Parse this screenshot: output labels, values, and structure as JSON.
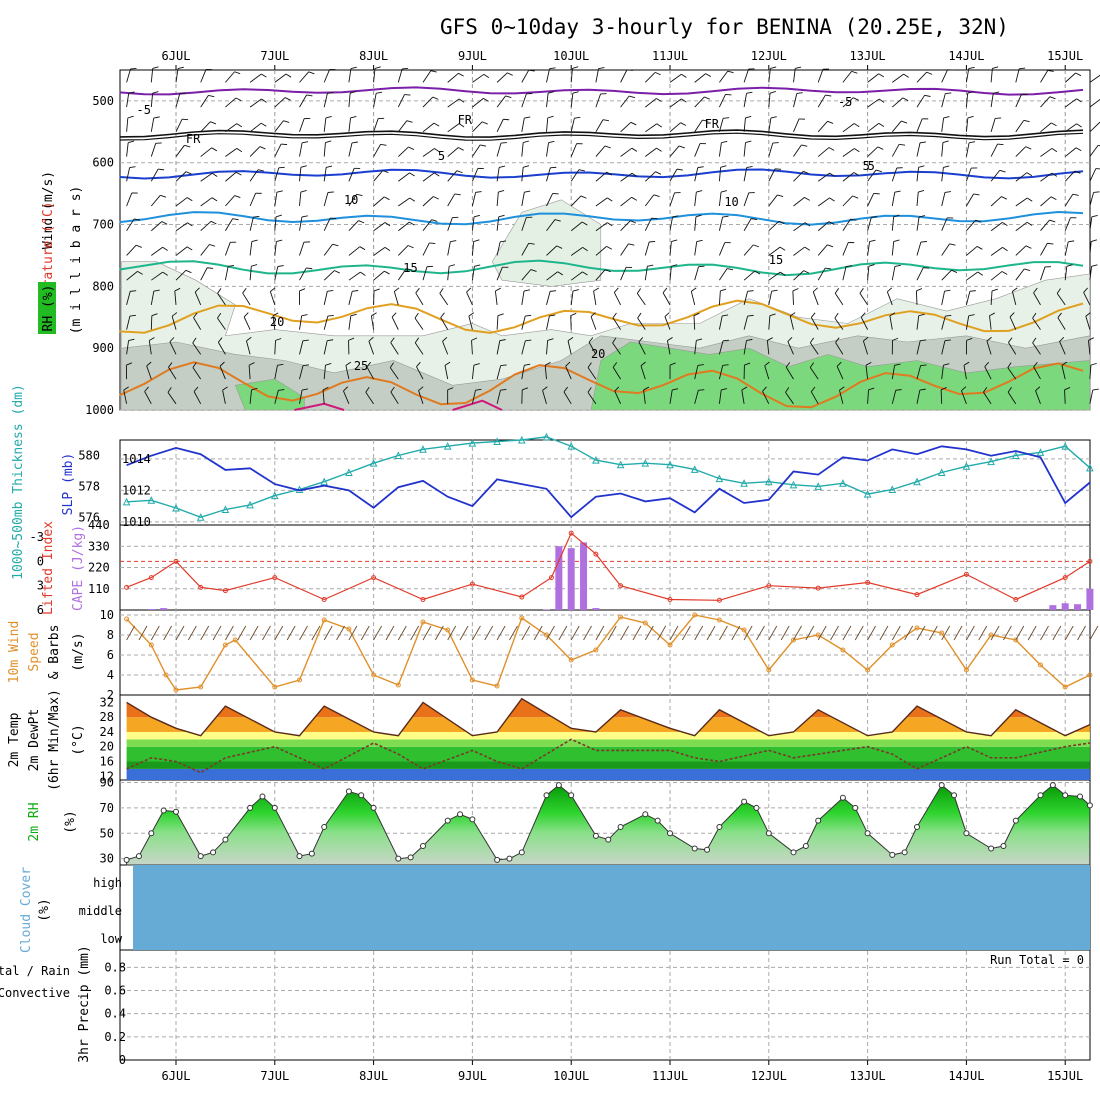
{
  "title": "GFS 0~10day 3-hourly for BENINA (20.25E, 32N)",
  "days": [
    "6JUL",
    "7JUL",
    "8JUL",
    "9JUL",
    "10JUL",
    "11JUL",
    "12JUL",
    "13JUL",
    "14JUL",
    "15JUL"
  ],
  "colors": {
    "rh": "#22bb22",
    "temp": "#e23a2a",
    "wind_label": "#000000",
    "thickness": "#22aaaa",
    "slp": "#2233cc",
    "lifted": "#e23a2a",
    "cape": "#b070e0",
    "wind10": "#e0902a",
    "rh2m": "#11aa11",
    "cloud": "#66aad6",
    "rain": "#22bb22",
    "convective": "#e23a2a"
  },
  "panels": {
    "upper": {
      "ylabel_wind": "Wind (m/s)",
      "ylabel_temp": "Temperature (°C)",
      "ylabel_rh": "RH (%)",
      "ylabel_mb": "(m i l l i b a r s)",
      "yticks": [
        "500",
        "600",
        "700",
        "800",
        "900",
        "1000"
      ],
      "contour_labels": [
        "5",
        "FR",
        "FR",
        "FR",
        "5",
        "5",
        "10",
        "10",
        "15",
        "15",
        "20",
        "25",
        "20",
        "-5",
        "-5"
      ]
    },
    "thickness": {
      "ylabel_left": "1000~500mb Thickness (dm)",
      "ylabel_right": "SLP (mb)",
      "left_ticks": [
        "580",
        "578",
        "576"
      ],
      "right_ticks": [
        "1014",
        "1012",
        "1010"
      ]
    },
    "cape": {
      "ylabel_left": "Lifted Index",
      "ylabel_right": "CAPE (J/kg)",
      "left_ticks": [
        "-3",
        "0",
        "3",
        "6"
      ],
      "right_ticks": [
        "440",
        "330",
        "220",
        "110"
      ]
    },
    "wind10": {
      "ylabel1": "10m Wind",
      "ylabel2": "Speed",
      "ylabel3": "& Barbs",
      "ylabel4": "(m/s)",
      "yticks": [
        "10",
        "8",
        "6",
        "4",
        "2"
      ]
    },
    "temp2m": {
      "ylabel1": "2m Temp",
      "ylabel2": "2m DewPt",
      "ylabel3": "(6hr Min/Max)",
      "ylabel4": "(°C)",
      "yticks": [
        "32",
        "28",
        "24",
        "20",
        "16",
        "12"
      ]
    },
    "rh2m": {
      "ylabel1": "2m RH",
      "ylabel2": "(%)",
      "yticks": [
        "90",
        "70",
        "50",
        "30"
      ]
    },
    "cloud": {
      "ylabel1": "Cloud Cover",
      "ylabel2": "(%)",
      "levels": [
        "high",
        "middle",
        "low"
      ]
    },
    "precip": {
      "ylabel_total": "Total / Rain",
      "ylabel_conv": "Convective",
      "ylabel_main": "3hr Precip (mm)",
      "yticks": [
        "0.8",
        "0.6",
        "0.4",
        "0.2",
        "0"
      ],
      "run_total": "Run Total = 0"
    }
  },
  "chart_data": [
    {
      "type": "line",
      "title": "1000~500mb Thickness (dm) and SLP (mb)",
      "x_unit": "day index (0 = 6JUL 00Z)",
      "series": [
        {
          "name": "Thickness (dm)",
          "ylim": [
            575.5,
            581
          ],
          "x": [
            -0.5,
            -0.25,
            0,
            0.25,
            0.5,
            0.75,
            1,
            1.25,
            1.5,
            1.75,
            2,
            2.25,
            2.5,
            2.75,
            3,
            3.25,
            3.5,
            3.75,
            4,
            4.25,
            4.5,
            4.75,
            5,
            5.25,
            5.5,
            5.75,
            6,
            6.25,
            6.5,
            6.75,
            7,
            7.25,
            7.5,
            7.75,
            8,
            8.25,
            8.5,
            8.75,
            9,
            9.25
          ],
          "values": [
            577.0,
            577.1,
            576.6,
            576.0,
            576.5,
            576.8,
            577.4,
            577.8,
            578.3,
            578.9,
            579.5,
            580.0,
            580.4,
            580.6,
            580.8,
            580.9,
            581.0,
            581.2,
            580.6,
            579.7,
            579.4,
            579.5,
            579.4,
            579.1,
            578.5,
            578.2,
            578.3,
            578.1,
            578.0,
            578.2,
            577.5,
            577.8,
            578.3,
            578.9,
            579.3,
            579.6,
            580.0,
            580.2,
            580.6,
            579.2
          ]
        },
        {
          "name": "SLP (mb)",
          "ylim": [
            1009.8,
            1015.2
          ],
          "x": [
            -0.5,
            -0.25,
            0,
            0.25,
            0.5,
            0.75,
            1,
            1.25,
            1.5,
            1.75,
            2,
            2.25,
            2.5,
            2.75,
            3,
            3.25,
            3.5,
            3.75,
            4,
            4.25,
            4.5,
            4.75,
            5,
            5.25,
            5.5,
            5.75,
            6,
            6.25,
            6.5,
            6.75,
            7,
            7.25,
            7.5,
            7.75,
            8,
            8.25,
            8.5,
            8.75,
            9,
            9.25
          ],
          "values": [
            1013.6,
            1014.2,
            1014.7,
            1014.3,
            1013.3,
            1013.4,
            1012.4,
            1012.0,
            1012.3,
            1012.0,
            1010.9,
            1012.2,
            1012.6,
            1011.6,
            1011.0,
            1012.7,
            1012.4,
            1012.1,
            1010.3,
            1011.6,
            1011.8,
            1011.3,
            1011.5,
            1010.6,
            1012.1,
            1011.2,
            1011.4,
            1013.2,
            1013.0,
            1014.1,
            1013.9,
            1014.6,
            1014.3,
            1014.8,
            1014.6,
            1014.2,
            1014.5,
            1014.1,
            1011.2,
            1012.5
          ]
        }
      ],
      "legend": "left axis label"
    },
    {
      "type": "bar",
      "title": "Lifted Index and CAPE (J/kg)",
      "x_unit": "day index",
      "series": [
        {
          "name": "CAPE (J/kg)",
          "ylim": [
            0,
            440
          ],
          "x": [
            -0.25,
            -0.125,
            3.75,
            3.875,
            4.0,
            4.125,
            4.25,
            8.875,
            9.0,
            9.125,
            9.25
          ],
          "values": [
            5,
            10,
            3,
            330,
            320,
            350,
            10,
            25,
            35,
            30,
            110
          ]
        },
        {
          "name": "Lifted Index",
          "type": "line",
          "ylim": [
            6,
            -4.5
          ],
          "x": [
            -0.5,
            -0.25,
            0,
            0.25,
            0.5,
            1,
            1.5,
            2,
            2.5,
            3,
            3.5,
            3.8,
            4,
            4.25,
            4.5,
            5,
            5.5,
            6,
            6.5,
            7,
            7.5,
            8,
            8.5,
            9,
            9.25
          ],
          "values": [
            3.2,
            2.0,
            0.0,
            3.2,
            3.6,
            2.0,
            4.7,
            2.0,
            4.7,
            2.8,
            4.4,
            2.0,
            -3.5,
            -0.9,
            3.0,
            4.7,
            4.8,
            3.0,
            3.3,
            2.6,
            4.1,
            1.6,
            4.7,
            2.0,
            0.0
          ]
        }
      ]
    },
    {
      "type": "line",
      "title": "10m Wind Speed & Barbs (m/s)",
      "ylim": [
        2,
        10.5
      ],
      "x": [
        -0.5,
        -0.25,
        -0.1,
        0,
        0.25,
        0.5,
        0.6,
        1,
        1.25,
        1.5,
        1.75,
        2,
        2.25,
        2.5,
        2.75,
        3,
        3.25,
        3.5,
        3.75,
        4,
        4.25,
        4.5,
        4.75,
        5,
        5.25,
        5.5,
        5.75,
        6,
        6.25,
        6.5,
        6.75,
        7,
        7.25,
        7.5,
        7.75,
        8,
        8.25,
        8.5,
        8.75,
        9,
        9.25
      ],
      "values": [
        9.6,
        7.0,
        4.0,
        2.5,
        2.8,
        7.0,
        7.5,
        2.8,
        3.5,
        9.5,
        8.6,
        4.0,
        3.0,
        9.3,
        8.5,
        3.5,
        2.9,
        9.7,
        8.0,
        5.5,
        6.5,
        9.8,
        9.2,
        7.0,
        10.0,
        9.5,
        8.5,
        4.5,
        7.5,
        8.0,
        6.5,
        4.5,
        7.0,
        8.7,
        8.2,
        4.5,
        8.0,
        7.5,
        5.0,
        2.8,
        4.0
      ]
    },
    {
      "type": "line",
      "title": "2m Temp / 2m DewPt (°C)",
      "ylim": [
        11,
        34
      ],
      "series": [
        {
          "name": "2m Temp",
          "x": [
            -0.5,
            -0.25,
            0,
            0.25,
            0.5,
            1,
            1.25,
            1.5,
            2,
            2.25,
            2.5,
            3,
            3.25,
            3.5,
            4,
            4.25,
            4.5,
            5,
            5.25,
            5.5,
            6,
            6.25,
            6.5,
            7,
            7.25,
            7.5,
            8,
            8.25,
            8.5,
            9,
            9.25
          ],
          "values": [
            32,
            28,
            25,
            23,
            31,
            24,
            23,
            31,
            24,
            23,
            32,
            23,
            24,
            33,
            25,
            24,
            30,
            25,
            23,
            30,
            23,
            24,
            30,
            23,
            24,
            31,
            24,
            23,
            30,
            23,
            26
          ]
        },
        {
          "name": "2m DewPt",
          "x": [
            -0.5,
            -0.25,
            0,
            0.25,
            0.5,
            1,
            1.25,
            1.5,
            2,
            2.25,
            2.5,
            3,
            3.25,
            3.5,
            4,
            4.25,
            4.5,
            5,
            5.25,
            5.5,
            6,
            6.25,
            6.5,
            7,
            7.25,
            7.5,
            8,
            8.25,
            8.5,
            9,
            9.25
          ],
          "values": [
            14,
            17,
            16,
            13,
            17,
            20,
            17,
            14,
            21,
            18,
            14,
            19,
            16,
            14,
            22,
            19,
            19,
            19,
            17,
            16,
            19,
            17,
            18,
            20,
            18,
            14,
            20,
            17,
            17,
            20,
            21
          ]
        }
      ]
    },
    {
      "type": "area",
      "title": "2m RH (%)",
      "ylim": [
        25,
        92
      ],
      "x": [
        -0.5,
        -0.375,
        -0.25,
        -0.125,
        0,
        0.25,
        0.375,
        0.5,
        0.75,
        0.875,
        1,
        1.25,
        1.375,
        1.5,
        1.75,
        1.875,
        2,
        2.25,
        2.375,
        2.5,
        2.75,
        2.875,
        3,
        3.25,
        3.375,
        3.5,
        3.75,
        3.875,
        4,
        4.25,
        4.375,
        4.5,
        4.75,
        4.875,
        5,
        5.25,
        5.375,
        5.5,
        5.75,
        5.875,
        6,
        6.25,
        6.375,
        6.5,
        6.75,
        6.875,
        7,
        7.25,
        7.375,
        7.5,
        7.75,
        7.875,
        8,
        8.25,
        8.375,
        8.5,
        8.75,
        8.875,
        9,
        9.15,
        9.25
      ],
      "values": [
        29,
        32,
        50,
        68,
        67,
        32,
        35,
        45,
        70,
        79,
        70,
        32,
        34,
        55,
        83,
        80,
        70,
        30,
        31,
        40,
        60,
        65,
        61,
        29,
        30,
        35,
        80,
        88,
        80,
        48,
        45,
        55,
        65,
        60,
        50,
        38,
        37,
        55,
        75,
        70,
        50,
        35,
        40,
        60,
        78,
        70,
        50,
        33,
        35,
        55,
        88,
        80,
        50,
        38,
        40,
        60,
        80,
        88,
        80,
        79,
        72
      ]
    },
    {
      "type": "bar",
      "title": "Cloud Cover (%)",
      "categories": [
        "high",
        "middle",
        "low"
      ],
      "values": [
        100,
        100,
        100
      ]
    },
    {
      "type": "bar",
      "title": "3hr Precip (mm)",
      "ylim": [
        0,
        0.95
      ],
      "series": [
        {
          "name": "Total / Rain",
          "values": []
        },
        {
          "name": "Convective",
          "values": []
        }
      ],
      "annotation": "Run Total = 0"
    }
  ]
}
